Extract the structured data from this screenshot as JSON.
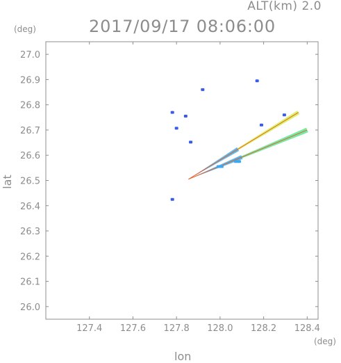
{
  "header": {
    "altitude_label": "ALT(km)  2.0",
    "timestamp": "2017/09/17 08:06:00"
  },
  "chart_data": {
    "type": "scatter",
    "title": "2017/09/17 08:06:00",
    "xlabel": "lon",
    "ylabel": "lat",
    "x_unit": "(deg)",
    "y_unit": "(deg)",
    "xlim": [
      127.2,
      128.45
    ],
    "ylim": [
      25.95,
      27.05
    ],
    "x_ticks": [
      127.4,
      127.6,
      127.8,
      128.0,
      128.2,
      128.4
    ],
    "x_tick_labels": [
      "127.4",
      "127.6",
      "127.8",
      "128.0",
      "128.2",
      "128.4"
    ],
    "y_ticks": [
      26.0,
      26.1,
      26.2,
      26.3,
      26.4,
      26.5,
      26.6,
      26.7,
      26.8,
      26.9,
      27.0
    ],
    "y_tick_labels": [
      "26.0",
      "26.1",
      "26.2",
      "26.3",
      "26.4",
      "26.5",
      "26.6",
      "26.7",
      "26.8",
      "26.9",
      "27.0"
    ],
    "grid": false,
    "colors": {
      "axis": "#8c8c8c",
      "echo_blue": "#3a5ae8",
      "echo_light_blue": "#3fa7f0",
      "echo_green": "#66e89a",
      "echo_yellow": "#d6f05a",
      "beam_edge": "#e8622a"
    },
    "radar_origin": {
      "lon": 127.855,
      "lat": 26.505
    },
    "beam_edges": [
      {
        "lon": 128.36,
        "lat": 26.77
      },
      {
        "lon": 128.4,
        "lat": 26.7
      }
    ],
    "echo_cells": [
      {
        "lon": 127.781,
        "lat": 26.77,
        "intensity": "low"
      },
      {
        "lon": 127.8,
        "lat": 26.707,
        "intensity": "low"
      },
      {
        "lon": 127.842,
        "lat": 26.755,
        "intensity": "low"
      },
      {
        "lon": 127.92,
        "lat": 26.86,
        "intensity": "low"
      },
      {
        "lon": 128.17,
        "lat": 26.895,
        "intensity": "low"
      },
      {
        "lon": 128.19,
        "lat": 26.72,
        "intensity": "low"
      },
      {
        "lon": 128.295,
        "lat": 26.76,
        "intensity": "low"
      },
      {
        "lon": 127.781,
        "lat": 26.425,
        "intensity": "low"
      },
      {
        "lon": 127.865,
        "lat": 26.652,
        "intensity": "low"
      },
      {
        "lon": 128.08,
        "lat": 26.575,
        "intensity": "moderate"
      },
      {
        "lon": 128.0,
        "lat": 26.555,
        "intensity": "moderate"
      }
    ]
  }
}
